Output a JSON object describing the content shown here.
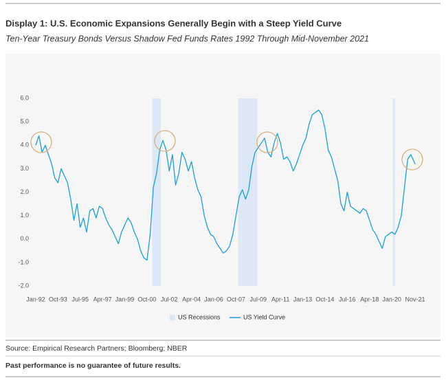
{
  "chart_data": {
    "type": "line",
    "title": "Display 1: U.S. Economic Expansions Generally Begin with a Steep Yield Curve",
    "subtitle": "Ten-Year Treasury Bonds Versus Shadow Fed Funds Rates 1992 Through Mid-November 2021",
    "x": [
      "1992-01",
      "1992-04",
      "1992-07",
      "1992-10",
      "1993-01",
      "1993-04",
      "1993-07",
      "1993-10",
      "1994-01",
      "1994-04",
      "1994-07",
      "1994-10",
      "1995-01",
      "1995-04",
      "1995-07",
      "1995-10",
      "1996-01",
      "1996-04",
      "1996-07",
      "1996-10",
      "1997-01",
      "1997-04",
      "1997-07",
      "1997-10",
      "1998-01",
      "1998-04",
      "1998-07",
      "1998-10",
      "1999-01",
      "1999-04",
      "1999-07",
      "1999-10",
      "2000-01",
      "2000-04",
      "2000-07",
      "2000-10",
      "2001-01",
      "2001-04",
      "2001-07",
      "2001-10",
      "2002-01",
      "2002-04",
      "2002-07",
      "2002-10",
      "2003-01",
      "2003-04",
      "2003-07",
      "2003-10",
      "2004-01",
      "2004-04",
      "2004-07",
      "2004-10",
      "2005-01",
      "2005-04",
      "2005-07",
      "2005-10",
      "2006-01",
      "2006-04",
      "2006-07",
      "2006-10",
      "2007-01",
      "2007-04",
      "2007-07",
      "2007-10",
      "2008-01",
      "2008-04",
      "2008-07",
      "2008-10",
      "2009-01",
      "2009-04",
      "2009-07",
      "2009-10",
      "2010-01",
      "2010-04",
      "2010-07",
      "2010-10",
      "2011-01",
      "2011-04",
      "2011-07",
      "2011-10",
      "2012-01",
      "2012-04",
      "2012-07",
      "2012-10",
      "2013-01",
      "2013-04",
      "2013-07",
      "2013-10",
      "2014-01",
      "2014-04",
      "2014-07",
      "2014-10",
      "2015-01",
      "2015-04",
      "2015-07",
      "2015-10",
      "2016-01",
      "2016-04",
      "2016-07",
      "2016-10",
      "2017-01",
      "2017-04",
      "2017-07",
      "2017-10",
      "2018-01",
      "2018-04",
      "2018-07",
      "2018-10",
      "2019-01",
      "2019-04",
      "2019-07",
      "2019-10",
      "2020-01",
      "2020-04",
      "2020-07",
      "2020-10",
      "2021-01",
      "2021-04",
      "2021-07",
      "2021-11"
    ],
    "series": [
      {
        "name": "US Yield Curve",
        "color": "#1a9fd6",
        "values": [
          4.0,
          4.4,
          3.7,
          4.0,
          3.6,
          3.2,
          2.6,
          2.4,
          3.0,
          2.7,
          2.4,
          1.7,
          0.8,
          1.5,
          0.5,
          0.9,
          0.3,
          1.2,
          1.3,
          0.9,
          1.4,
          1.3,
          0.9,
          0.6,
          0.4,
          0.1,
          -0.2,
          0.3,
          0.6,
          0.9,
          0.7,
          0.3,
          0.0,
          -0.5,
          -0.8,
          -0.9,
          0.2,
          2.2,
          2.8,
          3.8,
          4.2,
          3.8,
          2.9,
          3.6,
          2.3,
          2.8,
          3.7,
          3.4,
          2.9,
          3.3,
          2.6,
          2.1,
          1.8,
          1.0,
          0.5,
          0.2,
          0.1,
          -0.2,
          -0.4,
          -0.6,
          -0.5,
          -0.3,
          0.2,
          1.0,
          1.8,
          2.1,
          1.7,
          2.1,
          3.1,
          3.7,
          3.9,
          4.1,
          4.3,
          3.7,
          3.5,
          4.1,
          4.5,
          4.1,
          3.4,
          3.5,
          3.3,
          2.9,
          3.2,
          3.6,
          4.0,
          4.3,
          4.9,
          5.3,
          5.4,
          5.5,
          5.3,
          4.7,
          3.8,
          3.5,
          3.0,
          2.5,
          1.5,
          1.2,
          2.0,
          1.4,
          1.3,
          1.2,
          1.1,
          1.3,
          1.2,
          0.8,
          0.4,
          0.2,
          -0.1,
          -0.4,
          0.1,
          0.2,
          0.3,
          0.2,
          0.5,
          1.0,
          2.2,
          3.4,
          3.6,
          3.2
        ]
      }
    ],
    "recessions": {
      "name": "US Recessions",
      "color": "#dce8f5",
      "periods": [
        {
          "start": "2001-03",
          "end": "2001-11"
        },
        {
          "start": "2007-12",
          "end": "2009-06"
        },
        {
          "start": "2020-02",
          "end": "2020-04"
        }
      ]
    },
    "xlim": [
      "1992-01",
      "2021-11"
    ],
    "xticks": [
      {
        "value": "1992-01",
        "label": "Jan-92"
      },
      {
        "value": "1993-10",
        "label": "Oct-93"
      },
      {
        "value": "1995-07",
        "label": "Jul-95"
      },
      {
        "value": "1997-04",
        "label": "Apr-97"
      },
      {
        "value": "1999-01",
        "label": "Jan-99"
      },
      {
        "value": "2000-10",
        "label": "Oct-00"
      },
      {
        "value": "2002-07",
        "label": "Jul-02"
      },
      {
        "value": "2004-04",
        "label": "Apr-04"
      },
      {
        "value": "2006-01",
        "label": "Jan-06"
      },
      {
        "value": "2007-10",
        "label": "Oct-07"
      },
      {
        "value": "2009-07",
        "label": "Jul-09"
      },
      {
        "value": "2011-04",
        "label": "Apr-11"
      },
      {
        "value": "2013-01",
        "label": "Jan-13"
      },
      {
        "value": "2014-10",
        "label": "Oct-14"
      },
      {
        "value": "2016-07",
        "label": "Jul-16"
      },
      {
        "value": "2018-04",
        "label": "Apr-18"
      },
      {
        "value": "2020-01",
        "label": "Jan-20"
      },
      {
        "value": "2021-11",
        "label": "Nov-21"
      }
    ],
    "ylim": [
      -2,
      6
    ],
    "yticks": [
      {
        "value": -2,
        "label": "-2.0"
      },
      {
        "value": -1,
        "label": "-1.0"
      },
      {
        "value": 0,
        "label": "0.0"
      },
      {
        "value": 1,
        "label": "1.0"
      },
      {
        "value": 2,
        "label": "2.0"
      },
      {
        "value": 3,
        "label": "3.0"
      },
      {
        "value": 4,
        "label": "4.0"
      },
      {
        "value": 5,
        "label": "5.0"
      },
      {
        "value": 6,
        "label": "6.0"
      }
    ],
    "grid": false,
    "source": "Source: Empirical Research Partners; Bloomberg; NBER",
    "note": "Past performance is no guarantee of future results."
  }
}
